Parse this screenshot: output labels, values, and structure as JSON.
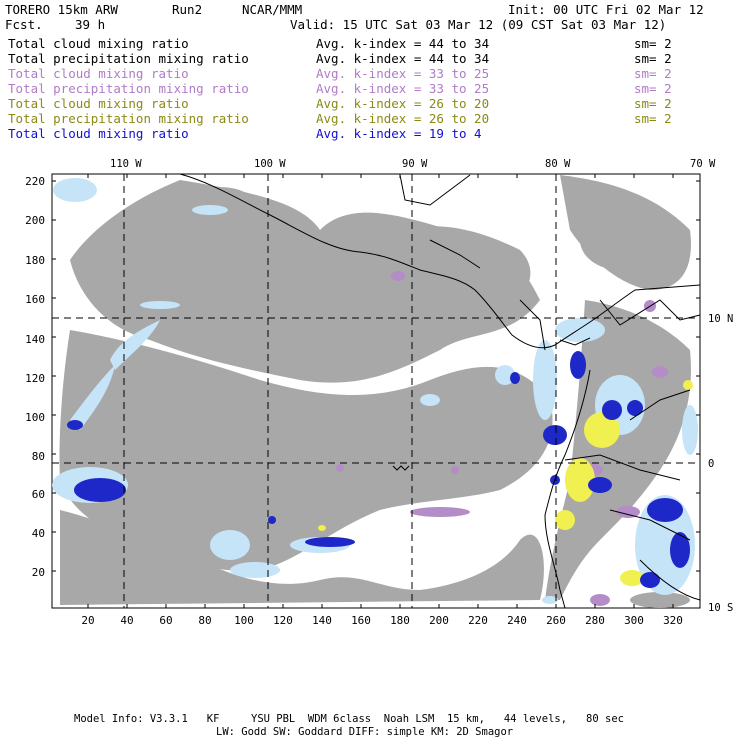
{
  "header": {
    "model": "TORERO 15km ARW",
    "run": "Run2",
    "org": "NCAR/MMM",
    "init": "Init: 00 UTC Fri 02 Mar 12",
    "fcst_label": "Fcst.",
    "fcst_value": "39 h",
    "valid": "Valid: 15 UTC Sat 03 Mar 12 (09 CST Sat 03 Mar 12)"
  },
  "fields": [
    {
      "name": "Total cloud mixing ratio",
      "range": "Avg. k-index = 44 to 34",
      "sm": "sm= 2",
      "color": "#000000"
    },
    {
      "name": "Total precipitation mixing ratio",
      "range": "Avg. k-index = 44 to 34",
      "sm": "sm= 2",
      "color": "#000000"
    },
    {
      "name": "Total cloud mixing ratio",
      "range": "Avg. k-index = 33 to 25",
      "sm": "sm= 2",
      "color": "#b07cc6"
    },
    {
      "name": "Total precipitation mixing ratio",
      "range": "Avg. k-index = 33 to 25",
      "sm": "sm= 2",
      "color": "#b07cc6"
    },
    {
      "name": "Total cloud mixing ratio",
      "range": "Avg. k-index = 26 to 20",
      "sm": "sm= 2",
      "color": "#8a8a16"
    },
    {
      "name": "Total precipitation mixing ratio",
      "range": "Avg. k-index = 26 to 20",
      "sm": "sm= 2",
      "color": "#8a8a16"
    },
    {
      "name": "Total cloud mixing ratio",
      "range": "Avg. k-index = 19 to 4",
      "sm": "",
      "color": "#1010d0"
    }
  ],
  "map": {
    "lon_labels": [
      "110 W",
      "100 W",
      "90 W",
      "80 W",
      "70 W"
    ],
    "lat_labels": [
      "10 N",
      "0",
      "10 S"
    ],
    "y_ticks": [
      "220",
      "200",
      "180",
      "160",
      "140",
      "120",
      "100",
      "80",
      "60",
      "40",
      "20"
    ],
    "x_ticks": [
      "20",
      "40",
      "60",
      "80",
      "100",
      "120",
      "140",
      "160",
      "180",
      "200",
      "220",
      "240",
      "260",
      "280",
      "300",
      "320"
    ],
    "colors": {
      "cloud_gray": "#a8a8a8",
      "light_blue": "#c6e4f8",
      "dark_blue": "#1e28c8",
      "lavender": "#b48cc8",
      "yellow": "#f0f050",
      "coast": "#000000"
    }
  },
  "footer": {
    "line1": "Model Info: V3.3.1   KF     YSU PBL  WDM 6class  Noah LSM  15 km,   44 levels,   80 sec",
    "line2": "LW: Godd SW: Goddard DIFF: simple KM: 2D Smagor"
  }
}
